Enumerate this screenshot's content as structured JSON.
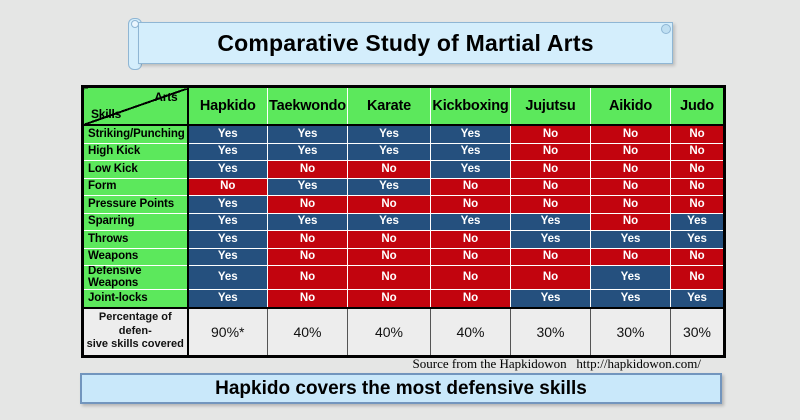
{
  "chart_data": {
    "type": "table",
    "title": "Comparative Study of Martial Arts",
    "corner": {
      "arts": "Arts",
      "skills": "Skills"
    },
    "columns": [
      "Hapkido",
      "Taekwondo",
      "Karate",
      "Kickboxing",
      "Jujutsu",
      "Aikido",
      "Judo"
    ],
    "rows": [
      {
        "skill": "Striking/Punching",
        "values": [
          "Yes",
          "Yes",
          "Yes",
          "Yes",
          "No",
          "No",
          "No"
        ]
      },
      {
        "skill": "High Kick",
        "values": [
          "Yes",
          "Yes",
          "Yes",
          "Yes",
          "No",
          "No",
          "No"
        ]
      },
      {
        "skill": "Low Kick",
        "values": [
          "Yes",
          "No",
          "No",
          "Yes",
          "No",
          "No",
          "No"
        ]
      },
      {
        "skill": "Form",
        "values": [
          "No",
          "Yes",
          "Yes",
          "No",
          "No",
          "No",
          "No"
        ]
      },
      {
        "skill": "Pressure Points",
        "values": [
          "Yes",
          "No",
          "No",
          "No",
          "No",
          "No",
          "No"
        ]
      },
      {
        "skill": "Sparring",
        "values": [
          "Yes",
          "Yes",
          "Yes",
          "Yes",
          "Yes",
          "No",
          "Yes"
        ]
      },
      {
        "skill": "Throws",
        "values": [
          "Yes",
          "No",
          "No",
          "No",
          "Yes",
          "Yes",
          "Yes"
        ]
      },
      {
        "skill": "Weapons",
        "values": [
          "Yes",
          "No",
          "No",
          "No",
          "No",
          "No",
          "No"
        ]
      },
      {
        "skill": "Defensive Weapons",
        "values": [
          "Yes",
          "No",
          "No",
          "No",
          "No",
          "Yes",
          "No"
        ]
      },
      {
        "skill": "Joint-locks",
        "values": [
          "Yes",
          "No",
          "No",
          "No",
          "Yes",
          "Yes",
          "Yes"
        ]
      }
    ],
    "summary": {
      "label_lines": [
        "Percentage of defen-",
        "sive skills covered"
      ],
      "values": [
        "90%*",
        "40%",
        "40%",
        "40%",
        "30%",
        "30%",
        "30%"
      ]
    },
    "source": "Source from the Hapkidowon   http://hapkidowon.com/",
    "caption": "Hapkido covers the most defensive skills",
    "layout_hints": {
      "legend": "none",
      "grid": "white cell separators, black section borders"
    }
  },
  "colors": {
    "yes_bg": "#25507E",
    "no_bg": "#C2040E",
    "green": "#5CE85C",
    "banner_blue": "#D4EEFC",
    "footer_blue": "#C9E8FA",
    "summary_bg": "#EDEDED"
  }
}
